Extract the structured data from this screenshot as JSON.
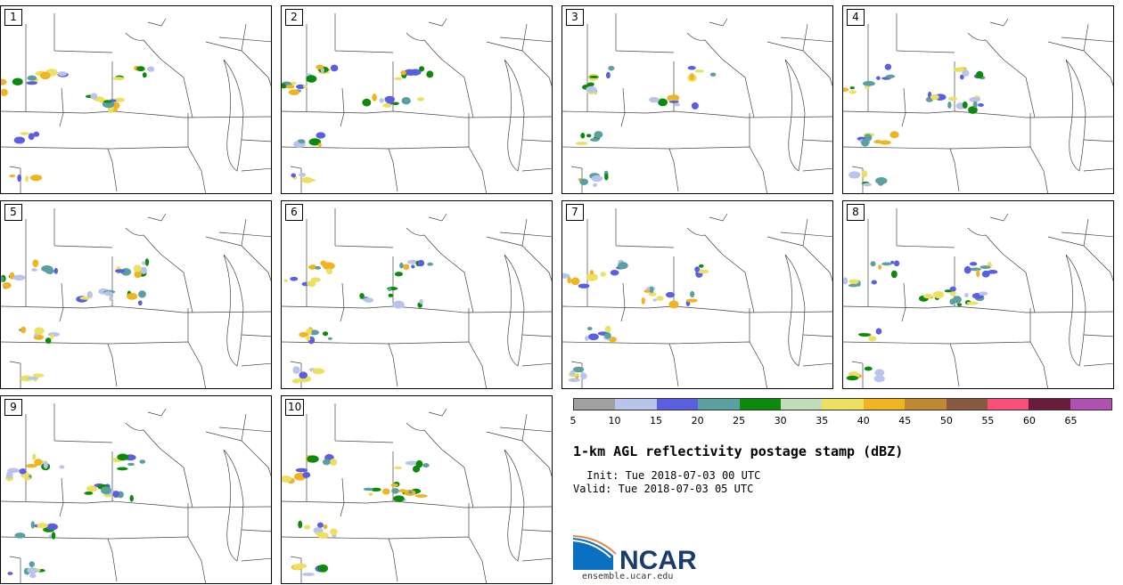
{
  "panels": [
    {
      "label": "1"
    },
    {
      "label": "2"
    },
    {
      "label": "3"
    },
    {
      "label": "4"
    },
    {
      "label": "5"
    },
    {
      "label": "6"
    },
    {
      "label": "7"
    },
    {
      "label": "8"
    },
    {
      "label": "9"
    },
    {
      "label": "10"
    }
  ],
  "colorbar": {
    "colors": [
      "#a0a0a0",
      "#b8c4ec",
      "#5a5ee0",
      "#5aa0a0",
      "#0c8a0c",
      "#c0dcb8",
      "#ece060",
      "#f0b420",
      "#c08830",
      "#8a5a40",
      "#f85078",
      "#6a1c3c",
      "#b050b0"
    ],
    "ticks": [
      "5",
      "10",
      "15",
      "20",
      "25",
      "30",
      "35",
      "40",
      "45",
      "50",
      "55",
      "60",
      "65"
    ]
  },
  "title": "1-km AGL reflectivity postage stamp (dBZ)",
  "init": " Init: Tue 2018-07-03 00 UTC",
  "valid": "Valid: Tue 2018-07-03 05 UTC",
  "logo": {
    "text": "NCAR",
    "url": "ensemble.ucar.edu"
  }
}
